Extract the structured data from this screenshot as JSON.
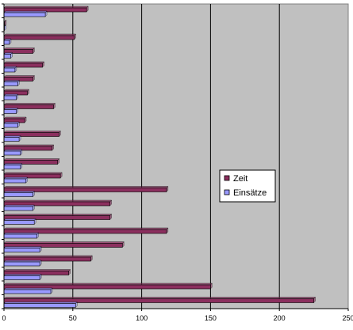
{
  "chart_data": {
    "type": "bar",
    "orientation": "horizontal",
    "xlim": [
      0,
      250
    ],
    "x_ticks": [
      "0",
      "50",
      "100",
      "150",
      "200",
      "250"
    ],
    "grid": true,
    "legend_position": "right",
    "series": [
      {
        "name": "Zeit",
        "color": "#8B2F5E",
        "values": [
          225,
          150,
          47,
          63,
          86,
          118,
          77,
          77,
          118,
          41,
          39,
          35,
          40,
          15,
          36,
          17,
          21,
          28,
          21,
          51,
          0.5,
          60
        ]
      },
      {
        "name": "Einsätze",
        "color": "#9999FF",
        "values": [
          52,
          34,
          26,
          26,
          26,
          24,
          22,
          21,
          21,
          16,
          12,
          12,
          11,
          10,
          9,
          9,
          10,
          8,
          5,
          4,
          0.3,
          30
        ]
      }
    ]
  },
  "colors": {
    "plot_background": "#C0C0C0",
    "gridline": "#000000",
    "axis": "#000000"
  }
}
